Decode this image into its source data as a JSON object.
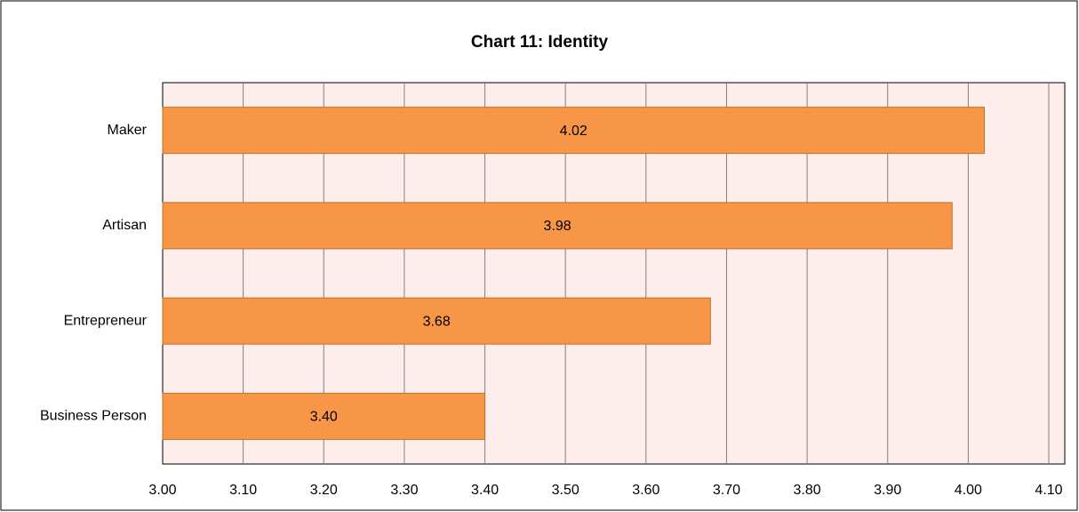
{
  "chart_data": {
    "type": "bar",
    "orientation": "horizontal",
    "title": "Chart 11: Identity",
    "categories": [
      "Maker",
      "Artisan",
      "Entrepreneur",
      "Business Person"
    ],
    "values": [
      4.02,
      3.98,
      3.68,
      3.4
    ],
    "value_labels": [
      "4.02",
      "3.98",
      "3.68",
      "3.40"
    ],
    "color": "#f79646",
    "xlim": [
      3.0,
      4.1
    ],
    "xticks": [
      {
        "value": 3.0,
        "label": "3.00"
      },
      {
        "value": 3.1,
        "label": "3.10"
      },
      {
        "value": 3.2,
        "label": "3.20"
      },
      {
        "value": 3.3,
        "label": "3.30"
      },
      {
        "value": 3.4,
        "label": "3.40"
      },
      {
        "value": 3.5,
        "label": "3.50"
      },
      {
        "value": 3.6,
        "label": "3.60"
      },
      {
        "value": 3.7,
        "label": "3.70"
      },
      {
        "value": 3.8,
        "label": "3.80"
      },
      {
        "value": 3.9,
        "label": "3.90"
      },
      {
        "value": 4.0,
        "label": "4.00"
      },
      {
        "value": 4.1,
        "label": "4.10"
      }
    ],
    "grid": true
  }
}
